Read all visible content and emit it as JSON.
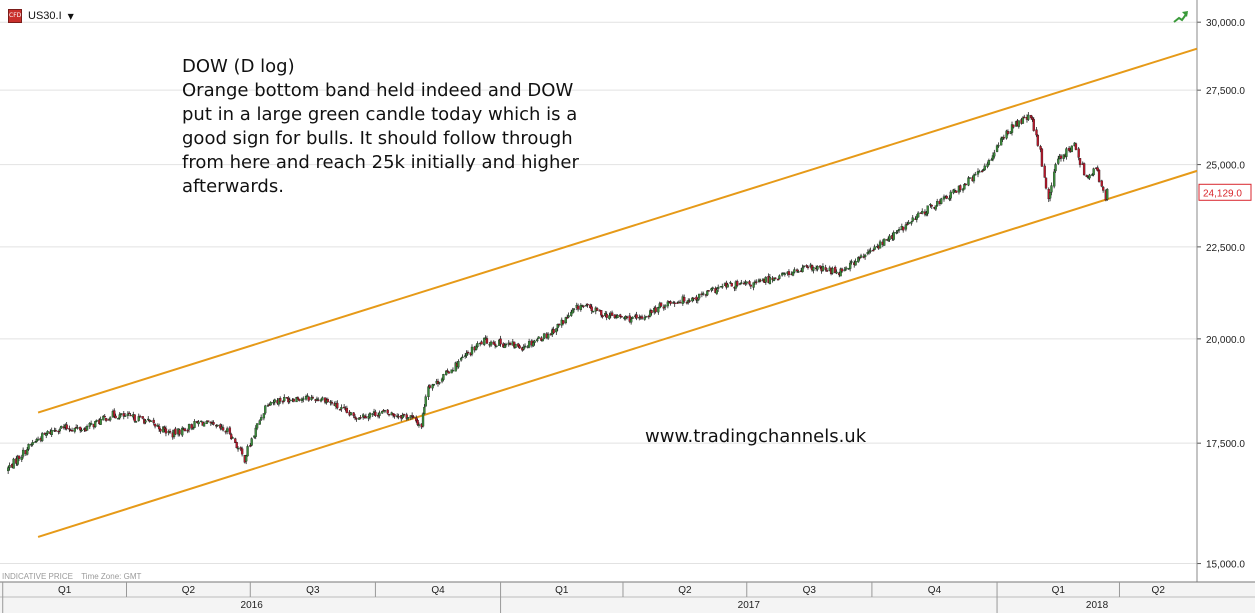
{
  "header": {
    "symbol": "US30.I",
    "symbol_icon": "cfd-icon",
    "dropdown_icon": "caret-down-icon",
    "trend_icon": "trend-arrow-icon"
  },
  "annotation": {
    "lines": [
      "DOW (D log)",
      "Orange bottom band held indeed and DOW",
      "put in a large green candle today which is a",
      "good sign for bulls. It should follow through",
      "from here and reach 25k initially and higher",
      "afterwards."
    ]
  },
  "website": "www.tradingchannels.uk",
  "footer": {
    "price_type": "INDICATIVE PRICE",
    "timezone": "Time Zone: GMT"
  },
  "chart_data": {
    "type": "candlestick",
    "scale": "log",
    "x": [
      "2016-01-04",
      "2016-01-25",
      "2016-02-11",
      "2016-03-01",
      "2016-03-22",
      "2016-04-13",
      "2016-05-05",
      "2016-05-26",
      "2016-06-16",
      "2016-06-27",
      "2016-07-14",
      "2016-08-04",
      "2016-08-25",
      "2016-09-15",
      "2016-10-06",
      "2016-10-27",
      "2016-11-04",
      "2016-11-09",
      "2016-11-15",
      "2016-12-06",
      "2016-12-20",
      "2017-01-17",
      "2017-02-07",
      "2017-03-01",
      "2017-03-22",
      "2017-04-13",
      "2017-05-04",
      "2017-05-25",
      "2017-06-15",
      "2017-07-06",
      "2017-07-27",
      "2017-08-17",
      "2017-09-07",
      "2017-09-28",
      "2017-10-19",
      "2017-11-09",
      "2017-11-30",
      "2017-12-21",
      "2018-01-11",
      "2018-01-26",
      "2018-02-02",
      "2018-02-08",
      "2018-02-15",
      "2018-02-27",
      "2018-03-08",
      "2018-03-15",
      "2018-03-22",
      "2018-03-23"
    ],
    "y": [
      16900,
      17550,
      17850,
      17820,
      18150,
      18050,
      17700,
      17980,
      17750,
      17150,
      18450,
      18550,
      18520,
      18100,
      18200,
      18100,
      17900,
      18850,
      18900,
      19550,
      19950,
      19800,
      20150,
      20880,
      20600,
      20500,
      20950,
      21080,
      21400,
      21450,
      21700,
      21900,
      21800,
      22300,
      22900,
      23550,
      24100,
      24800,
      26200,
      26600,
      25400,
      23900,
      25200,
      25600,
      24600,
      24900,
      23900,
      24129
    ],
    "y_ticks": [
      15000,
      17500,
      20000,
      22500,
      25000,
      27500,
      30000
    ],
    "y_tick_labels": [
      "15,000.0",
      "17,500.0",
      "20,000.0",
      "22,500.0",
      "25,000.0",
      "27,500.0",
      "30,000.0"
    ],
    "y_range": [
      14650,
      30550
    ],
    "x_range": [
      "2015-12-30",
      "2018-05-28"
    ],
    "last_price": "24,129.0",
    "quarters": [
      {
        "label": "Q1",
        "start": "2016-01-01",
        "end": "2016-04-01"
      },
      {
        "label": "Q2",
        "start": "2016-04-01",
        "end": "2016-07-01"
      },
      {
        "label": "Q3",
        "start": "2016-07-01",
        "end": "2016-10-01"
      },
      {
        "label": "Q4",
        "start": "2016-10-01",
        "end": "2017-01-01"
      },
      {
        "label": "Q1",
        "start": "2017-01-01",
        "end": "2017-04-01"
      },
      {
        "label": "Q2",
        "start": "2017-04-01",
        "end": "2017-07-01"
      },
      {
        "label": "Q3",
        "start": "2017-07-01",
        "end": "2017-10-01"
      },
      {
        "label": "Q4",
        "start": "2017-10-01",
        "end": "2018-01-01"
      },
      {
        "label": "Q1",
        "start": "2018-01-01",
        "end": "2018-04-01"
      },
      {
        "label": "Q2",
        "start": "2018-04-01",
        "end": "2018-07-01"
      }
    ],
    "years": [
      {
        "label": "2016",
        "start": "2016-01-01",
        "end": "2017-01-01"
      },
      {
        "label": "2017",
        "start": "2017-01-01",
        "end": "2018-01-01"
      },
      {
        "label": "2018",
        "start": "2018-01-01",
        "end": "2018-07-01"
      }
    ],
    "channel_lines": [
      {
        "x1": "2016-01-27",
        "y1": 18200,
        "x2": "2018-05-28",
        "y2": 29000
      },
      {
        "x1": "2016-01-27",
        "y1": 15520,
        "x2": "2018-05-28",
        "y2": 24800
      }
    ],
    "colors": {
      "channel": "#e69a18",
      "up": "#3a8a3a",
      "down": "#b5182b",
      "wick": "#222222",
      "grid": "#e2e2e2",
      "last_price": "#d9262c"
    }
  }
}
